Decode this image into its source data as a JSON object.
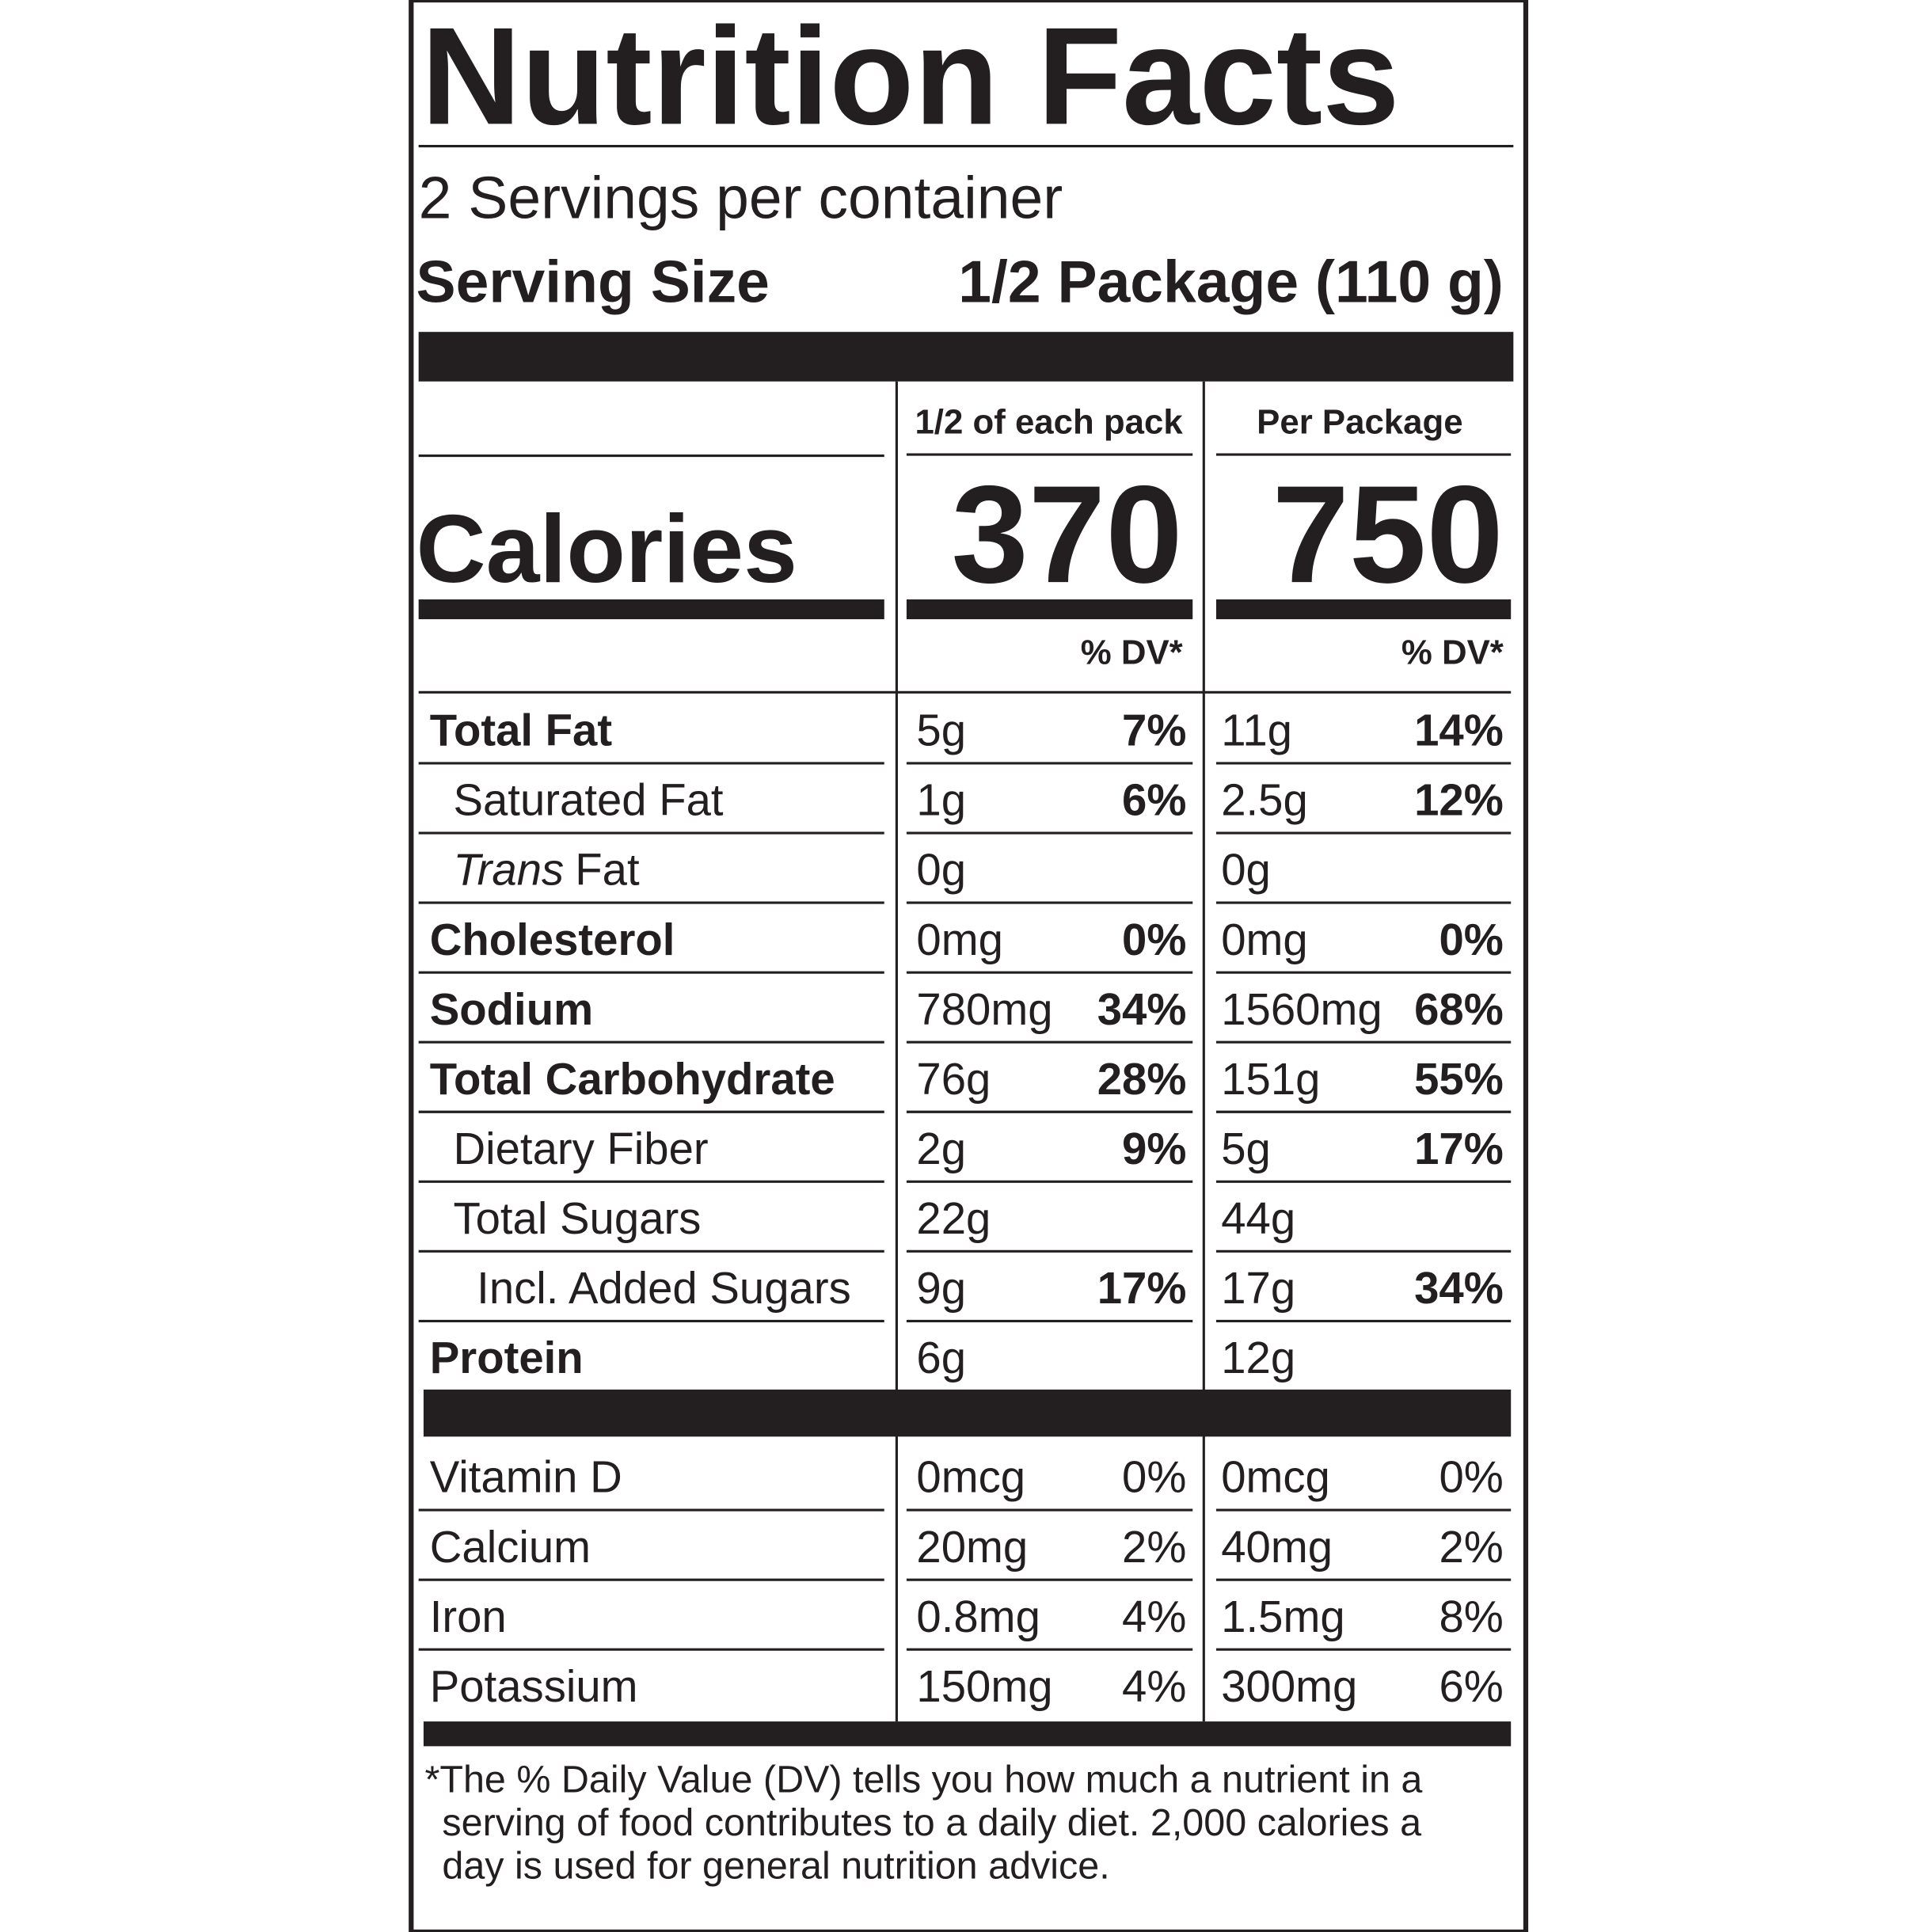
{
  "header": {
    "title": "Nutrition Facts",
    "servings": "2 Servings per container",
    "serving_size_label": "Serving Size",
    "serving_size": "1/2 Package (110 g)"
  },
  "columns": [
    "1/2 of each pack",
    "Per Package"
  ],
  "calories": {
    "label": "Calories",
    "values": [
      "370",
      "750"
    ]
  },
  "dv_headers": [
    "% DV*",
    "% DV*"
  ],
  "nutrients": [
    {
      "name": "Total Fat",
      "cols": [
        {
          "amount": "5g",
          "dv": "7%"
        },
        {
          "amount": "11g",
          "dv": "14%"
        }
      ]
    },
    {
      "name": "Saturated Fat",
      "cols": [
        {
          "amount": "1g",
          "dv": "6%"
        },
        {
          "amount": "2.5g",
          "dv": "12%"
        }
      ]
    },
    {
      "name_italic": "Trans",
      "name": "Fat",
      "cols": [
        {
          "amount": "0g"
        },
        {
          "amount": "0g"
        }
      ]
    },
    {
      "name": "Cholesterol",
      "cols": [
        {
          "amount": "0mg",
          "dv": "0%"
        },
        {
          "amount": "0mg",
          "dv": "0%"
        }
      ]
    },
    {
      "name": "Sodium",
      "cols": [
        {
          "amount": "780mg",
          "dv": "34%"
        },
        {
          "amount": "1560mg",
          "dv": "68%"
        }
      ]
    },
    {
      "name": "Total Carbohydrate",
      "cols": [
        {
          "amount": "76g",
          "dv": "28%"
        },
        {
          "amount": "151g",
          "dv": "55%"
        }
      ]
    },
    {
      "name": "Dietary Fiber",
      "cols": [
        {
          "amount": "2g",
          "dv": "9%"
        },
        {
          "amount": "5g",
          "dv": "17%"
        }
      ]
    },
    {
      "name": "Total Sugars",
      "cols": [
        {
          "amount": "22g"
        },
        {
          "amount": "44g"
        }
      ]
    },
    {
      "name": "Incl. Added Sugars",
      "cols": [
        {
          "amount": "9g",
          "dv": "17%"
        },
        {
          "amount": "17g",
          "dv": "34%"
        }
      ]
    },
    {
      "name": "Protein",
      "cols": [
        {
          "amount": "6g"
        },
        {
          "amount": "12g"
        }
      ]
    }
  ],
  "vitamins": [
    {
      "name": "Vitamin D",
      "cols": [
        {
          "amount": "0mcg",
          "dv": "0%"
        },
        {
          "amount": "0mcg",
          "dv": "0%"
        }
      ]
    },
    {
      "name": "Calcium",
      "cols": [
        {
          "amount": "20mg",
          "dv": "2%"
        },
        {
          "amount": "40mg",
          "dv": "2%"
        }
      ]
    },
    {
      "name": "Iron",
      "cols": [
        {
          "amount": "0.8mg",
          "dv": "4%"
        },
        {
          "amount": "1.5mg",
          "dv": "8%"
        }
      ]
    },
    {
      "name": "Potassium",
      "cols": [
        {
          "amount": "150mg",
          "dv": "4%"
        },
        {
          "amount": "300mg",
          "dv": "6%"
        }
      ]
    }
  ],
  "footnote": [
    "*The % Daily Value (DV) tells you how much a nutrient in a",
    "serving of food contributes to a daily diet. 2,000 calories a",
    "day is used for general nutrition advice."
  ]
}
